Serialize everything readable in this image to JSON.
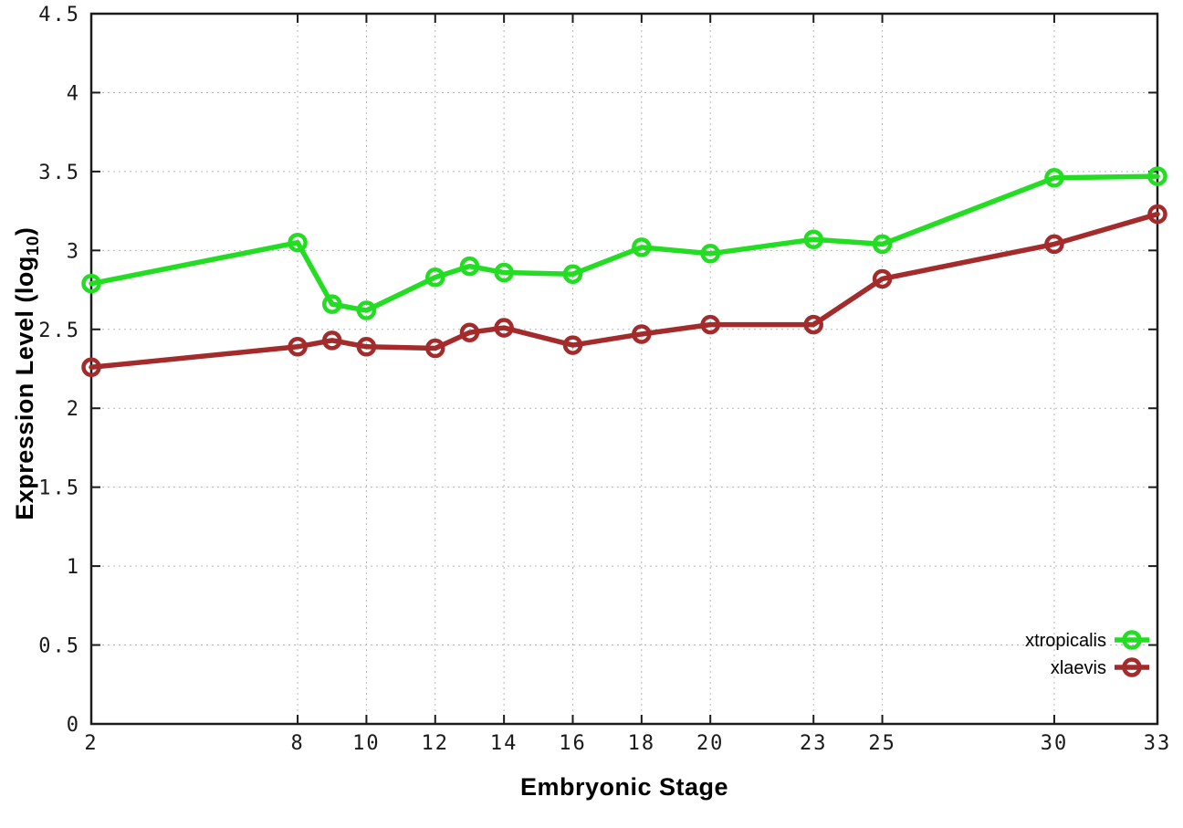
{
  "chart_data": {
    "type": "line",
    "title": "",
    "xlabel": "Embryonic Stage",
    "ylabel": "Expression Level (log10)",
    "ylabel_parts": {
      "pre": "Expression Level (log",
      "sub": "10",
      "post": ")"
    },
    "xlim": [
      2,
      33
    ],
    "ylim": [
      0,
      4.5
    ],
    "x_ticks": [
      2,
      8,
      10,
      12,
      14,
      16,
      18,
      20,
      23,
      25,
      30,
      33
    ],
    "y_ticks": [
      0,
      0.5,
      1,
      1.5,
      2,
      2.5,
      3,
      3.5,
      4,
      4.5
    ],
    "grid": true,
    "legend_position": "bottom-right",
    "x": [
      2,
      8,
      9,
      10,
      12,
      13,
      14,
      16,
      18,
      20,
      23,
      25,
      30,
      33
    ],
    "series": [
      {
        "name": "xtropicalis",
        "color": "#22dd22",
        "values": [
          2.79,
          3.05,
          2.66,
          2.62,
          2.83,
          2.9,
          2.86,
          2.85,
          3.02,
          2.98,
          3.07,
          3.04,
          3.46,
          3.47
        ]
      },
      {
        "name": "xlaevis",
        "color": "#a42b2b",
        "values": [
          2.26,
          2.39,
          2.43,
          2.39,
          2.38,
          2.48,
          2.51,
          2.4,
          2.47,
          2.53,
          2.53,
          2.82,
          3.04,
          3.23
        ]
      }
    ],
    "axis_color": "#1c1c1c",
    "grid_color": "#b8b8b8"
  }
}
